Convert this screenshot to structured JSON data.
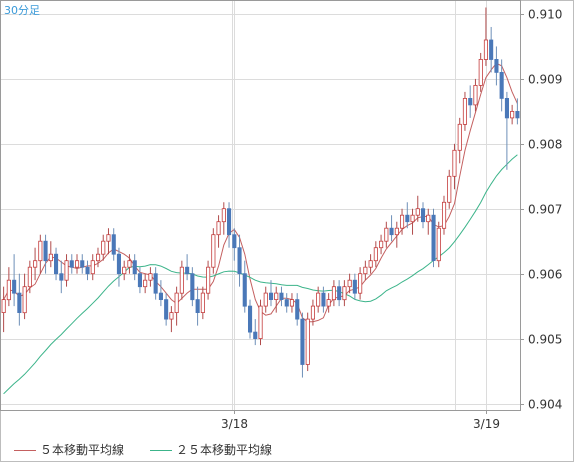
{
  "chart_data": {
    "type": "candlestick",
    "timeframe": "30分足",
    "title": "",
    "xlabel": "",
    "ylabel": "",
    "ylim": [
      0.9039,
      0.9102
    ],
    "yticks": [
      0.904,
      0.905,
      0.906,
      0.907,
      0.908,
      0.909,
      0.91
    ],
    "ytick_labels": [
      "0.904",
      "0.905",
      "0.906",
      "0.907",
      "0.908",
      "0.909",
      "0.910"
    ],
    "xticks": [
      {
        "label": "3/18",
        "index": 44
      },
      {
        "label": "3/19",
        "index": 92
      }
    ],
    "grid": true,
    "up_color": "#c43c3c",
    "down_color": "#3c6ec4",
    "candles": [
      [
        0.9054,
        0.9058,
        0.9051,
        0.9056
      ],
      [
        0.9056,
        0.9061,
        0.9055,
        0.9059
      ],
      [
        0.9059,
        0.9063,
        0.9055,
        0.9057
      ],
      [
        0.9057,
        0.906,
        0.9052,
        0.9054
      ],
      [
        0.9054,
        0.906,
        0.9053,
        0.9058
      ],
      [
        0.9058,
        0.9062,
        0.9057,
        0.9061
      ],
      [
        0.9061,
        0.9064,
        0.9059,
        0.9062
      ],
      [
        0.9062,
        0.9066,
        0.906,
        0.9065
      ],
      [
        0.9065,
        0.9066,
        0.906,
        0.9062
      ],
      [
        0.9062,
        0.9065,
        0.9061,
        0.9063
      ],
      [
        0.9063,
        0.9064,
        0.9059,
        0.906
      ],
      [
        0.906,
        0.9062,
        0.9057,
        0.9059
      ],
      [
        0.9059,
        0.9063,
        0.9058,
        0.9062
      ],
      [
        0.9062,
        0.9063,
        0.906,
        0.9061
      ],
      [
        0.9061,
        0.9063,
        0.906,
        0.9062
      ],
      [
        0.9062,
        0.9063,
        0.906,
        0.9061
      ],
      [
        0.9061,
        0.9062,
        0.9059,
        0.906
      ],
      [
        0.906,
        0.9063,
        0.9059,
        0.9062
      ],
      [
        0.9062,
        0.9064,
        0.9061,
        0.9063
      ],
      [
        0.9063,
        0.9066,
        0.9062,
        0.9065
      ],
      [
        0.9065,
        0.9067,
        0.9063,
        0.9066
      ],
      [
        0.9066,
        0.9067,
        0.9062,
        0.9063
      ],
      [
        0.9063,
        0.9064,
        0.9058,
        0.906
      ],
      [
        0.906,
        0.9062,
        0.9059,
        0.9061
      ],
      [
        0.9061,
        0.9063,
        0.906,
        0.9062
      ],
      [
        0.9062,
        0.9063,
        0.9059,
        0.906
      ],
      [
        0.906,
        0.9061,
        0.9057,
        0.9058
      ],
      [
        0.9058,
        0.906,
        0.9057,
        0.9059
      ],
      [
        0.9059,
        0.9061,
        0.9058,
        0.906
      ],
      [
        0.906,
        0.9061,
        0.9056,
        0.9057
      ],
      [
        0.9057,
        0.9059,
        0.9055,
        0.9056
      ],
      [
        0.9056,
        0.9057,
        0.9052,
        0.9053
      ],
      [
        0.9053,
        0.9055,
        0.9051,
        0.9054
      ],
      [
        0.9054,
        0.9058,
        0.9052,
        0.9057
      ],
      [
        0.9057,
        0.9062,
        0.9056,
        0.9061
      ],
      [
        0.9061,
        0.9063,
        0.9059,
        0.906
      ],
      [
        0.906,
        0.9061,
        0.9055,
        0.9056
      ],
      [
        0.9056,
        0.9058,
        0.9052,
        0.9054
      ],
      [
        0.9054,
        0.9058,
        0.9053,
        0.9057
      ],
      [
        0.9057,
        0.9062,
        0.9056,
        0.9061
      ],
      [
        0.9061,
        0.9067,
        0.906,
        0.9066
      ],
      [
        0.9066,
        0.9069,
        0.9064,
        0.9068
      ],
      [
        0.9068,
        0.9071,
        0.9066,
        0.907
      ],
      [
        0.907,
        0.9071,
        0.9064,
        0.9066
      ],
      [
        0.9066,
        0.9067,
        0.9062,
        0.9064
      ],
      [
        0.9064,
        0.9066,
        0.9058,
        0.906
      ],
      [
        0.906,
        0.9062,
        0.9054,
        0.9055
      ],
      [
        0.9055,
        0.9056,
        0.905,
        0.9051
      ],
      [
        0.9051,
        0.9053,
        0.9049,
        0.905
      ],
      [
        0.905,
        0.9056,
        0.9049,
        0.9055
      ],
      [
        0.9055,
        0.9058,
        0.9054,
        0.9057
      ],
      [
        0.9057,
        0.9059,
        0.9055,
        0.9056
      ],
      [
        0.9056,
        0.9058,
        0.9054,
        0.9057
      ],
      [
        0.9057,
        0.9058,
        0.9055,
        0.9056
      ],
      [
        0.9056,
        0.9057,
        0.9054,
        0.9055
      ],
      [
        0.9055,
        0.9057,
        0.9054,
        0.9056
      ],
      [
        0.9056,
        0.9057,
        0.9052,
        0.9053
      ],
      [
        0.9053,
        0.9054,
        0.9044,
        0.9046
      ],
      [
        0.9046,
        0.9054,
        0.9045,
        0.9053
      ],
      [
        0.9053,
        0.9056,
        0.9052,
        0.9055
      ],
      [
        0.9055,
        0.9058,
        0.9054,
        0.9057
      ],
      [
        0.9057,
        0.9058,
        0.9054,
        0.9055
      ],
      [
        0.9055,
        0.9057,
        0.9054,
        0.9056
      ],
      [
        0.9056,
        0.9059,
        0.9055,
        0.9058
      ],
      [
        0.9058,
        0.9059,
        0.9055,
        0.9056
      ],
      [
        0.9056,
        0.9059,
        0.9055,
        0.9058
      ],
      [
        0.9058,
        0.906,
        0.9057,
        0.9059
      ],
      [
        0.9059,
        0.906,
        0.9056,
        0.9057
      ],
      [
        0.9057,
        0.9061,
        0.9056,
        0.906
      ],
      [
        0.906,
        0.9062,
        0.9059,
        0.9061
      ],
      [
        0.9061,
        0.9063,
        0.906,
        0.9062
      ],
      [
        0.9062,
        0.9065,
        0.9061,
        0.9064
      ],
      [
        0.9064,
        0.9066,
        0.9063,
        0.9065
      ],
      [
        0.9065,
        0.9068,
        0.9064,
        0.9067
      ],
      [
        0.9067,
        0.9069,
        0.9065,
        0.9066
      ],
      [
        0.9066,
        0.9068,
        0.9064,
        0.9067
      ],
      [
        0.9067,
        0.907,
        0.9066,
        0.9069
      ],
      [
        0.9069,
        0.9071,
        0.9067,
        0.9068
      ],
      [
        0.9068,
        0.907,
        0.9066,
        0.9069
      ],
      [
        0.9069,
        0.9072,
        0.9068,
        0.907
      ],
      [
        0.907,
        0.9071,
        0.9067,
        0.9068
      ],
      [
        0.9068,
        0.907,
        0.9066,
        0.9069
      ],
      [
        0.9069,
        0.907,
        0.9061,
        0.9062
      ],
      [
        0.9062,
        0.9068,
        0.9061,
        0.9067
      ],
      [
        0.9067,
        0.9072,
        0.9066,
        0.9071
      ],
      [
        0.9071,
        0.9076,
        0.907,
        0.9075
      ],
      [
        0.9075,
        0.908,
        0.9073,
        0.9079
      ],
      [
        0.9079,
        0.9084,
        0.9077,
        0.9083
      ],
      [
        0.9083,
        0.9088,
        0.9082,
        0.9087
      ],
      [
        0.9087,
        0.9089,
        0.9084,
        0.9086
      ],
      [
        0.9086,
        0.909,
        0.9085,
        0.9089
      ],
      [
        0.9089,
        0.9094,
        0.9088,
        0.9093
      ],
      [
        0.9093,
        0.9101,
        0.9092,
        0.9096
      ],
      [
        0.9096,
        0.9098,
        0.9091,
        0.9093
      ],
      [
        0.9093,
        0.9095,
        0.9089,
        0.9091
      ],
      [
        0.9091,
        0.9093,
        0.9085,
        0.9087
      ],
      [
        0.9087,
        0.9088,
        0.9076,
        0.9084
      ],
      [
        0.9084,
        0.9086,
        0.9083,
        0.9085
      ],
      [
        0.9085,
        0.9087,
        0.9083,
        0.9084
      ]
    ],
    "series": [
      {
        "name": "５本移動平均線",
        "color": "#c46060",
        "period": 5
      },
      {
        "name": "２５本移動平均線",
        "color": "#3cb48a",
        "period": 25
      }
    ]
  }
}
